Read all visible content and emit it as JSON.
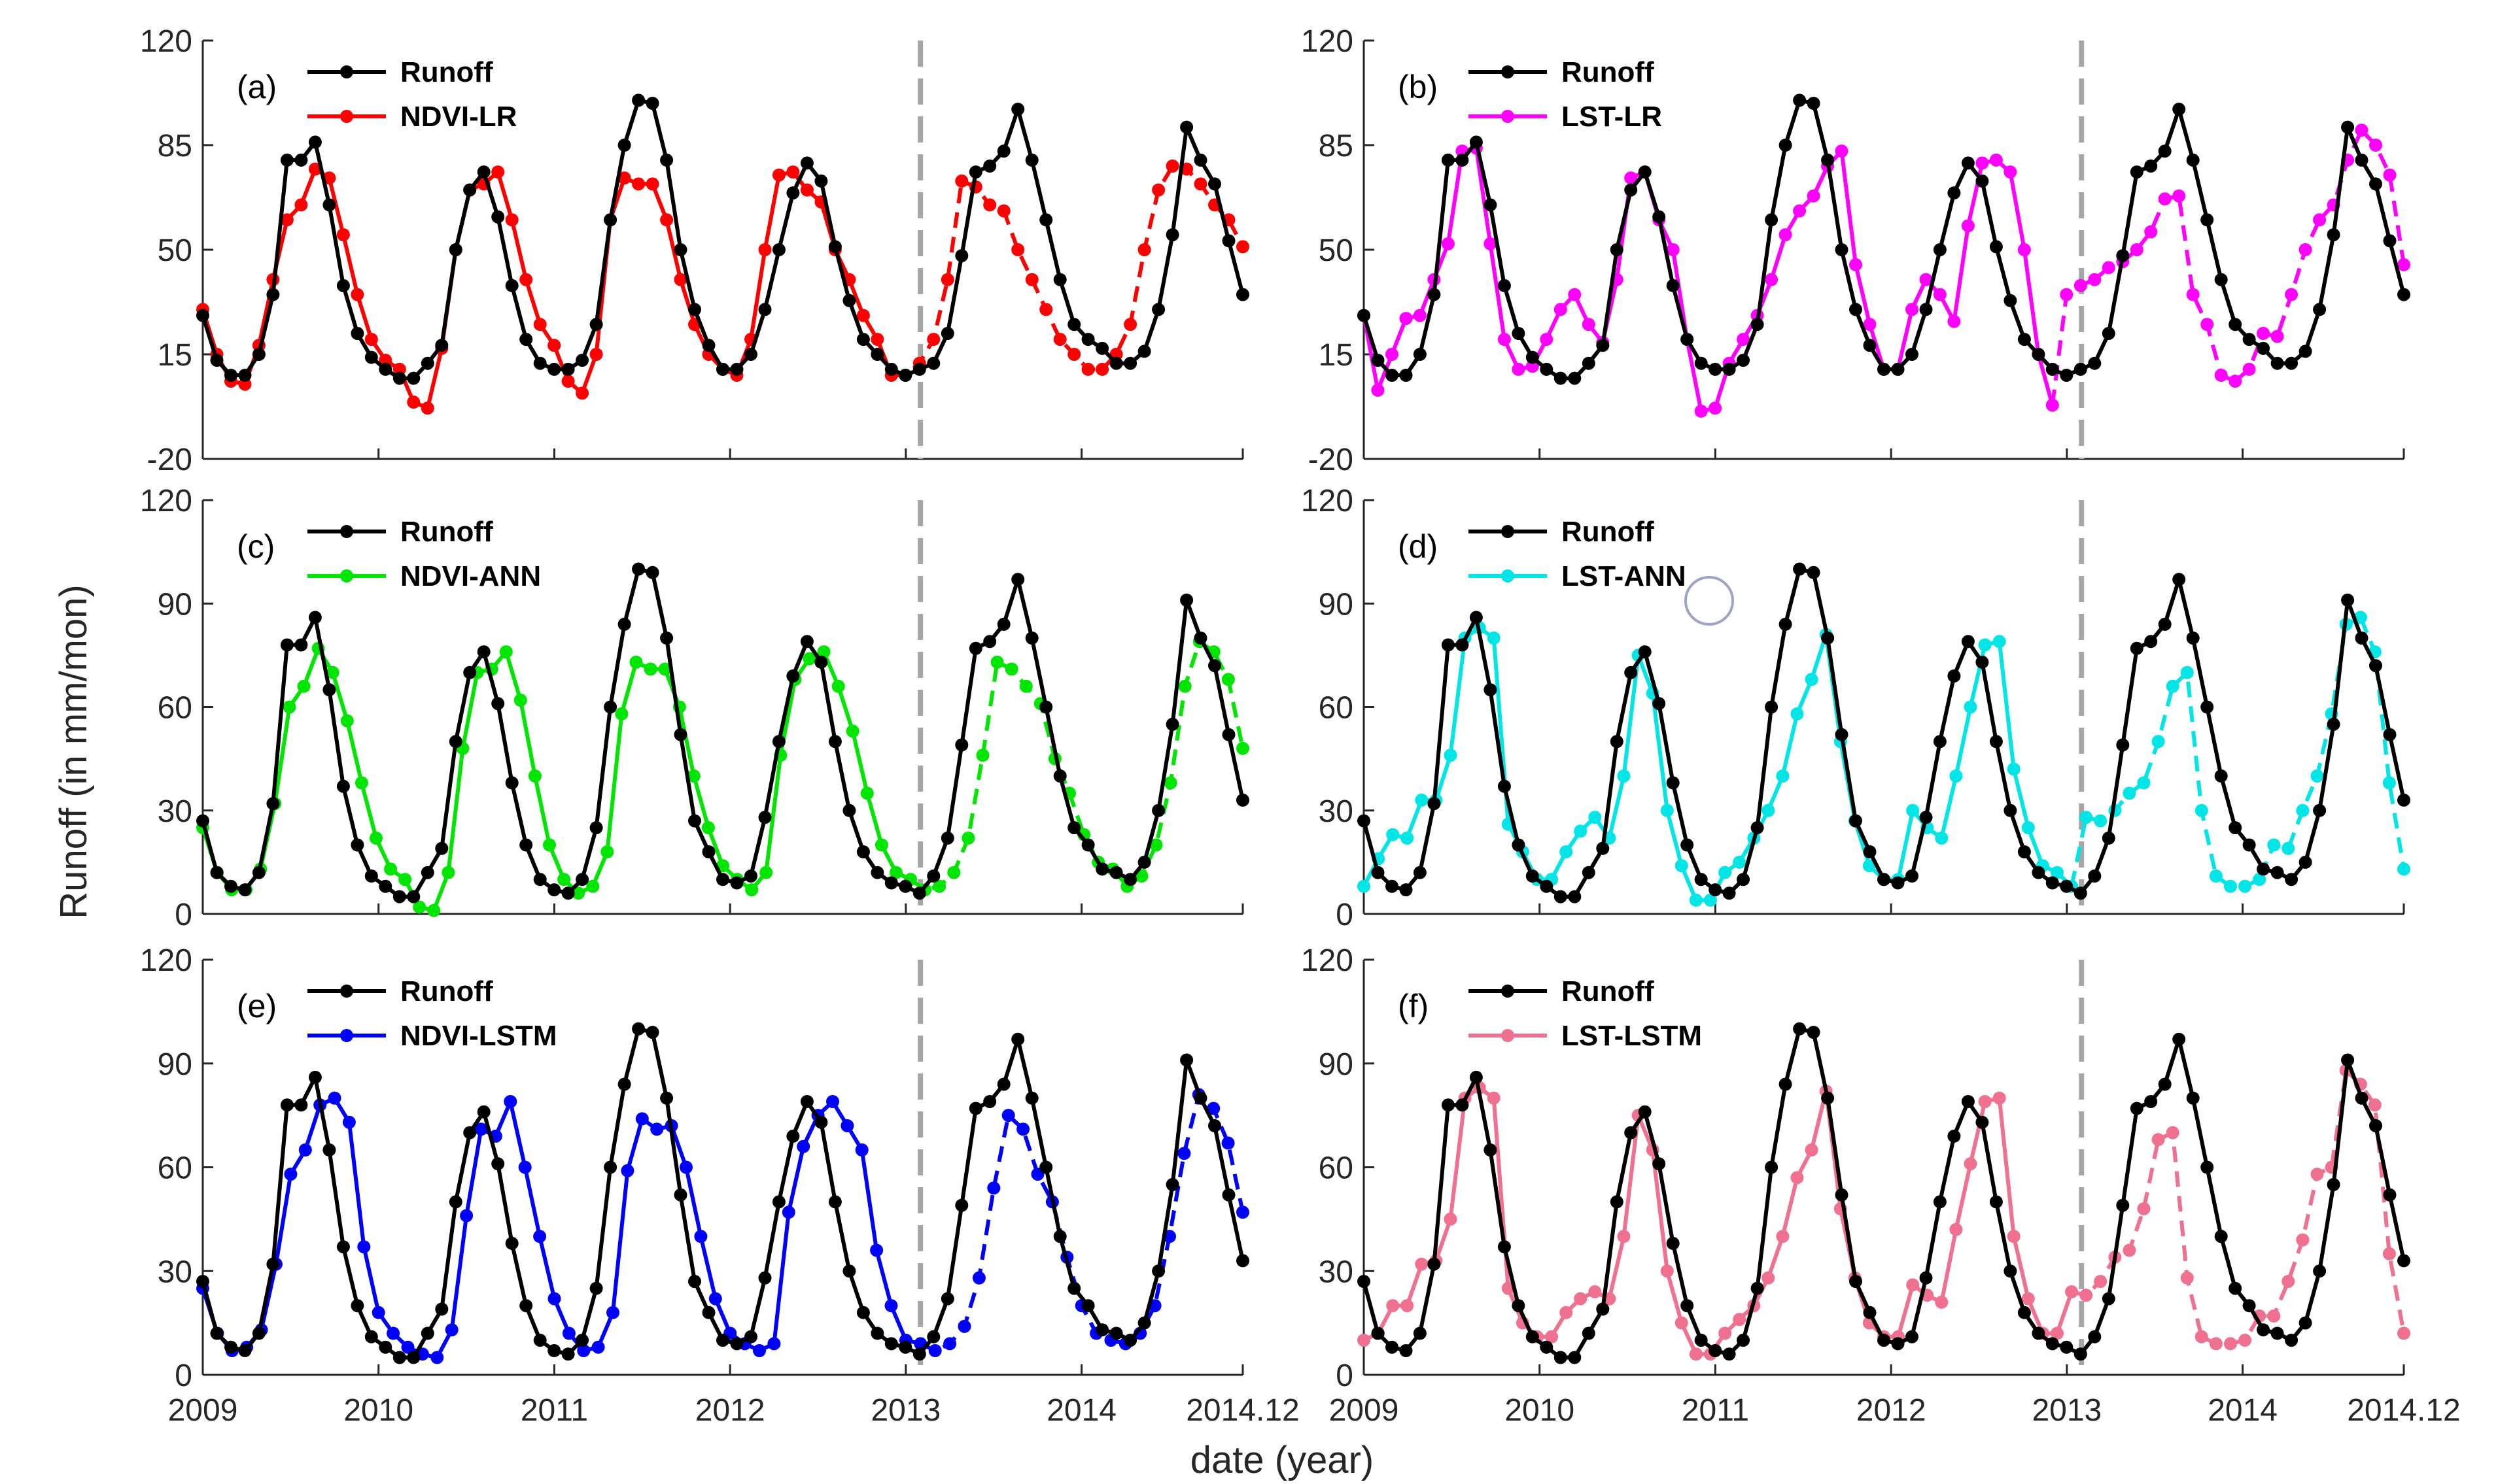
{
  "figure": {
    "ylabel": "Runoff (in mm/mon)",
    "xlabel": "date (year)",
    "colors": {
      "observed": "#000000",
      "split_line": "#a6a6a6",
      "axis": "#262626"
    }
  },
  "chart_data": [
    {
      "type": "line",
      "panel": "(a)",
      "title": "",
      "xlim": [
        2009,
        2014.917
      ],
      "ylim": [
        -20,
        120
      ],
      "yticks": [
        -20,
        15,
        50,
        85,
        120
      ],
      "xticks": [
        2009,
        2010,
        2011,
        2012,
        2013,
        2014,
        2014.917
      ],
      "xtick_labels": [
        "2009",
        "2010",
        "2011",
        "2012",
        "2013",
        "2014",
        "2014.12"
      ],
      "split_x": 2013.083,
      "split_style": "solid before split, dashed after split",
      "series": [
        {
          "name": "Runoff",
          "color": "#000000",
          "values": [
            28,
            13,
            8,
            8,
            15,
            35,
            80,
            80,
            86,
            65,
            38,
            22,
            14,
            10,
            7,
            7,
            12,
            18,
            50,
            70,
            76,
            61,
            38,
            20,
            12,
            10,
            10,
            13,
            25,
            60,
            85,
            100,
            99,
            80,
            50,
            30,
            18,
            10,
            10,
            15,
            30,
            50,
            69,
            79,
            73,
            51,
            33,
            20,
            15,
            10,
            8,
            10,
            12,
            22,
            48,
            76,
            78,
            83,
            97,
            80,
            60,
            40,
            25,
            20,
            17,
            12,
            12,
            16,
            30,
            55,
            91,
            80,
            72,
            53,
            35
          ]
        },
        {
          "name": "NDVI-LR",
          "color": "#ff0000",
          "values": [
            30,
            15,
            6,
            5,
            18,
            40,
            60,
            65,
            77,
            74,
            55,
            35,
            20,
            13,
            10,
            -1,
            -3,
            17,
            50,
            70,
            72,
            76,
            60,
            40,
            25,
            18,
            6,
            2,
            15,
            60,
            74,
            72,
            72,
            60,
            40,
            25,
            15,
            10,
            8,
            20,
            50,
            75,
            76,
            70,
            66,
            50,
            40,
            28,
            20,
            8,
            8,
            12,
            20,
            40,
            73,
            71,
            65,
            63,
            50,
            40,
            30,
            20,
            15,
            10,
            10,
            15,
            25,
            50,
            70,
            78,
            77,
            72,
            65,
            60,
            51
          ]
        }
      ]
    },
    {
      "type": "line",
      "panel": "(b)",
      "title": "",
      "xlim": [
        2009,
        2014.917
      ],
      "ylim": [
        -20,
        120
      ],
      "yticks": [
        -20,
        15,
        50,
        85,
        120
      ],
      "xticks": [
        2009,
        2010,
        2011,
        2012,
        2013,
        2014,
        2014.917
      ],
      "xtick_labels": [
        "2009",
        "2010",
        "2011",
        "2012",
        "2013",
        "2014",
        "2014.12"
      ],
      "split_x": 2013.083,
      "split_style": "solid before split, dashed after split",
      "series": [
        {
          "name": "Runoff",
          "color": "#000000",
          "values": [
            28,
            13,
            8,
            8,
            15,
            35,
            80,
            80,
            86,
            65,
            38,
            22,
            14,
            10,
            7,
            7,
            12,
            18,
            50,
            70,
            76,
            61,
            38,
            20,
            12,
            10,
            10,
            13,
            25,
            60,
            85,
            100,
            99,
            80,
            50,
            30,
            18,
            10,
            10,
            15,
            30,
            50,
            69,
            79,
            73,
            51,
            33,
            20,
            15,
            10,
            8,
            10,
            12,
            22,
            48,
            76,
            78,
            83,
            97,
            80,
            60,
            40,
            25,
            20,
            17,
            12,
            12,
            16,
            30,
            55,
            91,
            80,
            72,
            53,
            35
          ]
        },
        {
          "name": "LST-LR",
          "color": "#ff00ff",
          "values": [
            28,
            3,
            15,
            27,
            28,
            40,
            52,
            83,
            84,
            52,
            20,
            10,
            11,
            20,
            30,
            35,
            25,
            19,
            40,
            74,
            76,
            60,
            50,
            20,
            -4,
            -3,
            12,
            20,
            28,
            40,
            55,
            63,
            68,
            78,
            83,
            45,
            25,
            10,
            10,
            30,
            40,
            35,
            26,
            58,
            79,
            80,
            76,
            50,
            15,
            -2,
            35,
            38,
            40,
            44,
            46,
            50,
            56,
            67,
            68,
            35,
            25,
            8,
            6,
            10,
            22,
            21,
            35,
            50,
            60,
            65,
            80,
            90,
            85,
            75,
            45
          ]
        }
      ]
    },
    {
      "type": "line",
      "panel": "(c)",
      "title": "",
      "xlim": [
        2009,
        2014.917
      ],
      "ylim": [
        0,
        120
      ],
      "yticks": [
        0,
        30,
        60,
        90,
        120
      ],
      "xticks": [
        2009,
        2010,
        2011,
        2012,
        2013,
        2014,
        2014.917
      ],
      "xtick_labels": [
        "2009",
        "2010",
        "2011",
        "2012",
        "2013",
        "2014",
        "2014.12"
      ],
      "split_x": 2013.083,
      "split_style": "solid before split, dashed after split",
      "series": [
        {
          "name": "Runoff",
          "color": "#000000",
          "values": [
            27,
            12,
            8,
            7,
            12,
            32,
            78,
            78,
            86,
            65,
            37,
            20,
            11,
            8,
            5,
            5,
            12,
            19,
            50,
            70,
            76,
            61,
            38,
            20,
            10,
            7,
            6,
            10,
            25,
            60,
            84,
            100,
            99,
            80,
            52,
            27,
            18,
            10,
            9,
            11,
            28,
            50,
            69,
            79,
            73,
            50,
            30,
            18,
            12,
            9,
            8,
            6,
            11,
            22,
            49,
            77,
            79,
            84,
            97,
            80,
            60,
            40,
            25,
            20,
            13,
            12,
            10,
            15,
            30,
            55,
            91,
            80,
            72,
            52,
            33
          ]
        },
        {
          "name": "NDVI-ANN",
          "color": "#00e600",
          "values": [
            25,
            12,
            7,
            7,
            13,
            32,
            60,
            66,
            77,
            70,
            56,
            38,
            22,
            13,
            10,
            2,
            1,
            12,
            48,
            70,
            71,
            76,
            62,
            40,
            20,
            10,
            6,
            8,
            18,
            58,
            73,
            71,
            71,
            60,
            40,
            25,
            14,
            10,
            7,
            12,
            46,
            68,
            74,
            76,
            66,
            53,
            35,
            20,
            12,
            10,
            7,
            8,
            12,
            22,
            46,
            73,
            71,
            66,
            61,
            45,
            35,
            23,
            15,
            13,
            8,
            11,
            20,
            38,
            66,
            79,
            76,
            68,
            48
          ]
        }
      ]
    },
    {
      "type": "line",
      "panel": "(d)",
      "title": "",
      "xlim": [
        2009,
        2014.917
      ],
      "ylim": [
        0,
        120
      ],
      "yticks": [
        0,
        30,
        60,
        90,
        120
      ],
      "xticks": [
        2009,
        2010,
        2011,
        2012,
        2013,
        2014,
        2014.917
      ],
      "xtick_labels": [
        "2009",
        "2010",
        "2011",
        "2012",
        "2013",
        "2014",
        "2014.12"
      ],
      "split_x": 2013.083,
      "split_style": "solid before split, dashed after split",
      "series": [
        {
          "name": "Runoff",
          "color": "#000000",
          "values": [
            27,
            12,
            8,
            7,
            12,
            32,
            78,
            78,
            86,
            65,
            37,
            20,
            11,
            8,
            5,
            5,
            12,
            19,
            50,
            70,
            76,
            61,
            38,
            20,
            10,
            7,
            6,
            10,
            25,
            60,
            84,
            100,
            99,
            80,
            52,
            27,
            18,
            10,
            9,
            11,
            28,
            50,
            69,
            79,
            73,
            50,
            30,
            18,
            12,
            9,
            8,
            6,
            11,
            22,
            49,
            77,
            79,
            84,
            97,
            80,
            60,
            40,
            25,
            20,
            13,
            12,
            10,
            15,
            30,
            55,
            91,
            80,
            72,
            52,
            33
          ]
        },
        {
          "name": "LST-ANN",
          "color": "#00e5e5",
          "values": [
            8,
            16,
            23,
            22,
            33,
            33,
            46,
            80,
            83,
            80,
            26,
            18,
            10,
            10,
            18,
            24,
            28,
            22,
            40,
            75,
            64,
            30,
            14,
            4,
            4,
            12,
            15,
            22,
            30,
            40,
            58,
            68,
            81,
            50,
            27,
            14,
            10,
            10,
            30,
            25,
            22,
            40,
            60,
            78,
            79,
            42,
            25,
            14,
            12,
            8,
            28,
            27,
            30,
            35,
            38,
            50,
            66,
            70,
            30,
            11,
            8,
            8,
            10,
            20,
            19,
            30,
            40,
            58,
            84,
            86,
            76,
            38,
            13
          ]
        }
      ]
    },
    {
      "type": "line",
      "panel": "(e)",
      "title": "",
      "xlim": [
        2009,
        2014.917
      ],
      "ylim": [
        0,
        120
      ],
      "yticks": [
        0,
        30,
        60,
        90,
        120
      ],
      "xticks": [
        2009,
        2010,
        2011,
        2012,
        2013,
        2014,
        2014.917
      ],
      "xtick_labels": [
        "2009",
        "2010",
        "2011",
        "2012",
        "2013",
        "2014",
        "2014.12"
      ],
      "split_x": 2013.083,
      "split_style": "solid before split, dashed after split",
      "series": [
        {
          "name": "Runoff",
          "color": "#000000",
          "values": [
            27,
            12,
            8,
            7,
            12,
            32,
            78,
            78,
            86,
            65,
            37,
            20,
            11,
            8,
            5,
            5,
            12,
            19,
            50,
            70,
            76,
            61,
            38,
            20,
            10,
            7,
            6,
            10,
            25,
            60,
            84,
            100,
            99,
            80,
            52,
            27,
            18,
            10,
            9,
            11,
            28,
            50,
            69,
            79,
            73,
            50,
            30,
            18,
            12,
            9,
            8,
            6,
            11,
            22,
            49,
            77,
            79,
            84,
            97,
            80,
            60,
            40,
            25,
            20,
            13,
            12,
            10,
            15,
            30,
            55,
            91,
            80,
            72,
            52,
            33
          ]
        },
        {
          "name": "NDVI-LSTM",
          "color": "#0000ff",
          "values": [
            25,
            12,
            7,
            8,
            13,
            32,
            58,
            65,
            78,
            80,
            73,
            37,
            18,
            12,
            8,
            6,
            5,
            13,
            46,
            71,
            69,
            79,
            60,
            40,
            22,
            12,
            7,
            8,
            18,
            59,
            74,
            71,
            72,
            60,
            40,
            22,
            12,
            9,
            7,
            9,
            47,
            66,
            75,
            79,
            72,
            65,
            36,
            20,
            10,
            9,
            7,
            9,
            14,
            28,
            54,
            75,
            71,
            58,
            50,
            34,
            20,
            12,
            10,
            9,
            12,
            20,
            40,
            64,
            81,
            77,
            67,
            47
          ]
        }
      ]
    },
    {
      "type": "line",
      "panel": "(f)",
      "title": "",
      "xlim": [
        2009,
        2014.917
      ],
      "ylim": [
        0,
        120
      ],
      "yticks": [
        0,
        30,
        60,
        90,
        120
      ],
      "xticks": [
        2009,
        2010,
        2011,
        2012,
        2013,
        2014,
        2014.917
      ],
      "xtick_labels": [
        "2009",
        "2010",
        "2011",
        "2012",
        "2013",
        "2014",
        "2014.12"
      ],
      "split_x": 2013.083,
      "split_style": "solid before split, dashed after split",
      "series": [
        {
          "name": "Runoff",
          "color": "#000000",
          "values": [
            27,
            12,
            8,
            7,
            12,
            32,
            78,
            78,
            86,
            65,
            37,
            20,
            11,
            8,
            5,
            5,
            12,
            19,
            50,
            70,
            76,
            61,
            38,
            20,
            10,
            7,
            6,
            10,
            25,
            60,
            84,
            100,
            99,
            80,
            52,
            27,
            18,
            10,
            9,
            11,
            28,
            50,
            69,
            79,
            73,
            50,
            30,
            18,
            12,
            9,
            8,
            6,
            11,
            22,
            49,
            77,
            79,
            84,
            97,
            80,
            60,
            40,
            25,
            20,
            13,
            12,
            10,
            15,
            30,
            55,
            91,
            80,
            72,
            52,
            33
          ]
        },
        {
          "name": "LST-LSTM",
          "color": "#f07090",
          "values": [
            10,
            12,
            20,
            20,
            32,
            33,
            45,
            80,
            83,
            80,
            25,
            15,
            11,
            11,
            18,
            22,
            24,
            22,
            40,
            75,
            65,
            30,
            15,
            6,
            6,
            12,
            16,
            20,
            28,
            40,
            57,
            65,
            82,
            48,
            28,
            15,
            11,
            11,
            26,
            23,
            21,
            42,
            61,
            79,
            80,
            40,
            22,
            12,
            12,
            24,
            23,
            27,
            34,
            36,
            48,
            68,
            70,
            28,
            11,
            9,
            9,
            10,
            17,
            17,
            27,
            39,
            58,
            60,
            88,
            84,
            78,
            35,
            12
          ]
        }
      ]
    }
  ]
}
